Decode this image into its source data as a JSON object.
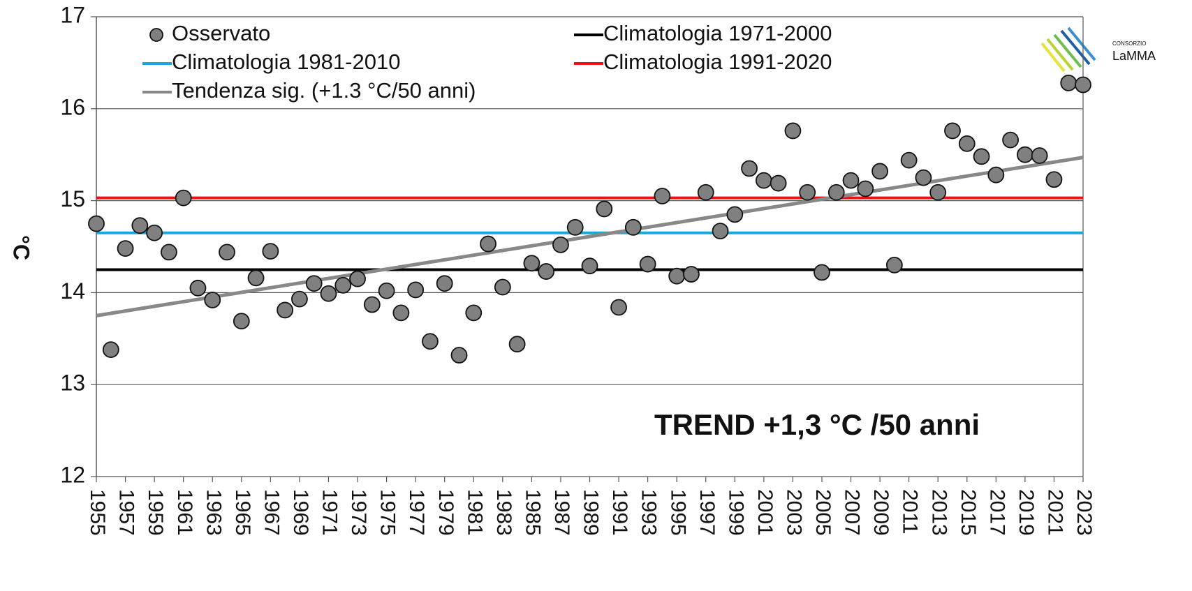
{
  "chart_data": {
    "type": "scatter",
    "ylabel": "°C",
    "annotation": "TREND +1,3 °C /50 anni",
    "logo": {
      "small": "CONSORZIO",
      "name": "LaMMA"
    },
    "xlim": [
      1955,
      2023
    ],
    "xticks": [
      1955,
      1957,
      1959,
      1961,
      1963,
      1965,
      1967,
      1969,
      1971,
      1973,
      1975,
      1977,
      1979,
      1981,
      1983,
      1985,
      1987,
      1989,
      1991,
      1993,
      1995,
      1997,
      1999,
      2001,
      2003,
      2005,
      2007,
      2009,
      2011,
      2013,
      2015,
      2017,
      2019,
      2021,
      2023
    ],
    "ylim": [
      12,
      17
    ],
    "yticks": [
      12,
      13,
      14,
      15,
      16,
      17
    ],
    "grid": true,
    "series": [
      {
        "name": "Osservato",
        "kind": "points",
        "color": "#808080",
        "x": [
          1955,
          1956,
          1957,
          1958,
          1959,
          1960,
          1961,
          1962,
          1963,
          1964,
          1965,
          1966,
          1967,
          1968,
          1969,
          1970,
          1971,
          1972,
          1973,
          1974,
          1975,
          1976,
          1977,
          1978,
          1979,
          1980,
          1981,
          1982,
          1983,
          1984,
          1985,
          1986,
          1987,
          1988,
          1989,
          1990,
          1991,
          1992,
          1993,
          1994,
          1995,
          1996,
          1997,
          1998,
          1999,
          2000,
          2001,
          2002,
          2003,
          2004,
          2005,
          2006,
          2007,
          2008,
          2009,
          2010,
          2011,
          2012,
          2013,
          2014,
          2015,
          2016,
          2017,
          2018,
          2019,
          2020,
          2021,
          2022,
          2023
        ],
        "values": [
          14.75,
          13.38,
          14.48,
          14.73,
          14.65,
          14.44,
          15.03,
          14.05,
          13.92,
          14.44,
          13.69,
          14.16,
          14.45,
          13.81,
          13.93,
          14.1,
          13.99,
          14.08,
          14.15,
          13.87,
          14.02,
          13.78,
          14.03,
          13.47,
          14.1,
          13.32,
          13.78,
          14.53,
          14.06,
          13.44,
          14.32,
          14.23,
          14.52,
          14.71,
          14.29,
          14.91,
          13.84,
          14.71,
          14.31,
          15.05,
          14.18,
          14.2,
          15.09,
          14.67,
          14.85,
          15.35,
          15.22,
          15.19,
          15.76,
          15.09,
          14.22,
          15.09,
          15.22,
          15.13,
          15.32,
          14.3,
          15.44,
          15.25,
          15.09,
          15.76,
          15.62,
          15.48,
          15.28,
          15.66,
          15.5,
          15.49,
          15.23,
          16.28,
          16.26
        ]
      },
      {
        "name": "Climatologia 1971-2000",
        "kind": "line",
        "color": "#000000",
        "x": [
          1955,
          2023
        ],
        "values": [
          14.25,
          14.25
        ]
      },
      {
        "name": "Climatologia 1981-2010",
        "kind": "line",
        "color": "#1aa7e0",
        "x": [
          1955,
          2023
        ],
        "values": [
          14.65,
          14.65
        ]
      },
      {
        "name": "Climatologia 1991-2020",
        "kind": "line",
        "color": "#ee1111",
        "x": [
          1955,
          2023
        ],
        "values": [
          15.03,
          15.03
        ]
      },
      {
        "name": "Tendenza sig. (+1.3 °C/50 anni)",
        "kind": "line",
        "color": "#888888",
        "x": [
          1955,
          2023
        ],
        "values": [
          13.75,
          15.47
        ]
      }
    ]
  }
}
